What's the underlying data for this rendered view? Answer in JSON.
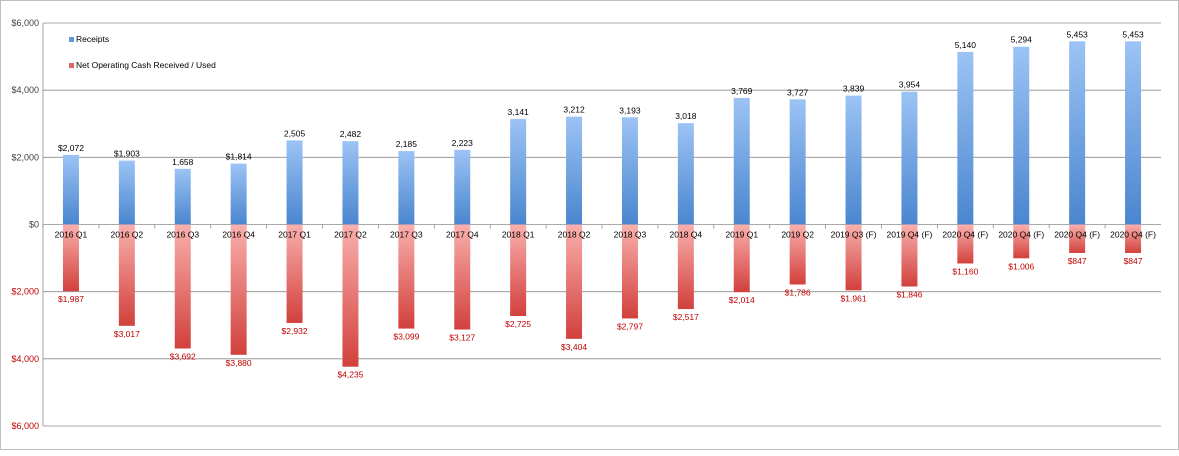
{
  "chart_data": {
    "type": "bar",
    "categories": [
      "2016 Q1",
      "2016 Q2",
      "2016 Q3",
      "2016 Q4",
      "2017 Q1",
      "2017 Q2",
      "2017 Q3",
      "2017 Q4",
      "2018 Q1",
      "2018 Q2",
      "2018 Q3",
      "2018 Q4",
      "2019 Q1",
      "2019 Q2",
      "2019 Q3 (F)",
      "2019 Q4 (F)",
      "2020 Q4 (F)",
      "2020 Q4 (F)",
      "2020 Q4 (F)",
      "2020 Q4 (F)"
    ],
    "series": [
      {
        "name": "Receipts",
        "values": [
          2072,
          1903,
          1658,
          1814,
          2505,
          2482,
          2185,
          2223,
          3141,
          3212,
          3193,
          3018,
          3769,
          3727,
          3839,
          3954,
          5140,
          5294,
          5453,
          5453
        ],
        "labels": [
          "$2,072",
          "$1,903",
          "1,658",
          "$1,814",
          "2,505",
          "2,482",
          "2,185",
          "2,223",
          "3,141",
          "3,212",
          "3,193",
          "3,018",
          "3,769",
          "3,727",
          "3,839",
          "3,954",
          "5,140",
          "5,294",
          "5,453",
          "5,453"
        ],
        "color": "#5b9bd5"
      },
      {
        "name": "Net Operating Cash Received / Used",
        "values": [
          -1987,
          -3017,
          -3692,
          -3880,
          -2932,
          -4235,
          -3099,
          -3127,
          -2725,
          -3404,
          -2797,
          -2517,
          -2014,
          -1786,
          -1961,
          -1846,
          -1160,
          -1006,
          -847,
          -847
        ],
        "labels": [
          "$1,987",
          "$3,017",
          "$3,692",
          "$3,880",
          "$2,932",
          "$4,235",
          "$3,099",
          "$3,127",
          "$2,725",
          "$3,404",
          "$2,797",
          "$2,517",
          "$2,014",
          "$1,786",
          "$1,961",
          "$1,846",
          "$1,160",
          "$1,006",
          "$847",
          "$847"
        ],
        "color": "#e06666"
      }
    ],
    "ylim": [
      -6000,
      6000
    ],
    "yticks": [
      6000,
      4000,
      2000,
      0,
      -2000,
      -4000,
      -6000
    ],
    "ytick_labels": [
      "$6,000",
      "$4,000",
      "$2,000",
      "$0",
      "$2,000",
      "$4,000",
      "$6,000"
    ],
    "grid": true,
    "legend": "top-left",
    "title": "",
    "xlabel": "",
    "ylabel": ""
  }
}
